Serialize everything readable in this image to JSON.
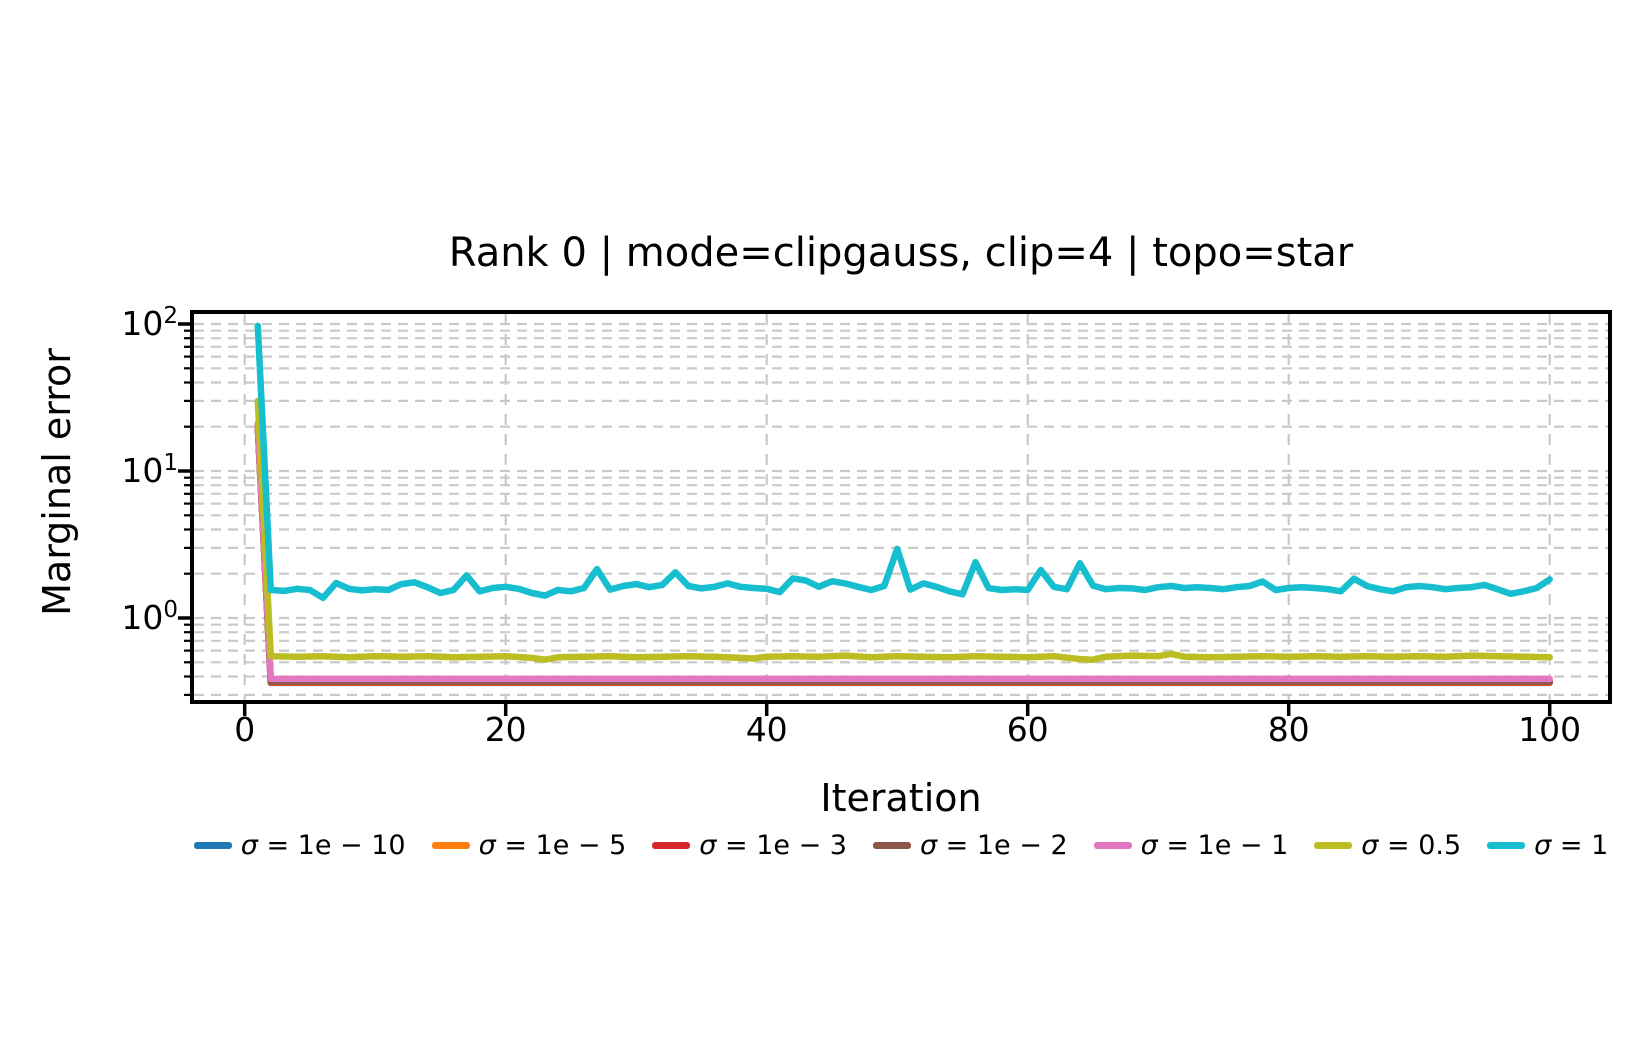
{
  "figure": {
    "title": "Rank 0 | mode=clipgauss, clip=4 | topo=star",
    "xlabel": "Iteration",
    "ylabel": "Marginal error"
  },
  "chart_data": {
    "type": "line",
    "title": "Rank 0 | mode=clipgauss, clip=4 | topo=star",
    "xlabel": "Iteration",
    "ylabel": "Marginal error",
    "x_scale": "linear",
    "y_scale": "log",
    "xlim": [
      -4,
      104.6
    ],
    "ylim": [
      0.268,
      120
    ],
    "x_ticks": [
      0,
      20,
      40,
      60,
      80,
      100
    ],
    "y_ticks": [
      {
        "text": "10^0",
        "base": "10",
        "exponent": "0",
        "value": 1
      },
      {
        "text": "10^1",
        "base": "10",
        "exponent": "1",
        "value": 10
      },
      {
        "text": "10^2",
        "base": "10",
        "exponent": "2",
        "value": 100
      }
    ],
    "grid": {
      "major": true,
      "minor": true,
      "style": "dashed",
      "color": "#c9c9c9"
    },
    "legend_position": "below-xlabel",
    "series": [
      {
        "name": "σ = 1e − 10",
        "sigma": "1e-10",
        "label_symbol": "σ",
        "label_rest": " = 1e − 10",
        "color": "#1f77b4",
        "x": [
          1,
          2,
          100
        ],
        "values": [
          20,
          0.362,
          0.362
        ]
      },
      {
        "name": "σ = 1e − 5",
        "sigma": "1e-5",
        "label_symbol": "σ",
        "label_rest": " = 1e − 5",
        "color": "#ff7f0e",
        "x": [
          1,
          2,
          100
        ],
        "values": [
          20,
          0.363,
          0.363
        ]
      },
      {
        "name": "σ = 1e − 3",
        "sigma": "1e-3",
        "label_symbol": "σ",
        "label_rest": " = 1e − 3",
        "color": "#d62728",
        "x": [
          1,
          2,
          100
        ],
        "values": [
          20,
          0.365,
          0.365
        ]
      },
      {
        "name": "σ = 1e − 2",
        "sigma": "1e-2",
        "label_symbol": "σ",
        "label_rest": " = 1e − 2",
        "color": "#8c564b",
        "x": [
          1,
          2,
          100
        ],
        "values": [
          20,
          0.368,
          0.368
        ]
      },
      {
        "name": "σ = 1e − 1",
        "sigma": "1e-1",
        "label_symbol": "σ",
        "label_rest": " = 1e − 1",
        "color": "#e377c2",
        "x": [
          1,
          2,
          100
        ],
        "values": [
          21,
          0.385,
          0.385
        ]
      },
      {
        "name": "σ = 0.5",
        "sigma": "0.5",
        "label_symbol": "σ",
        "label_rest": " = 0.5",
        "color": "#bcbd22",
        "x": [
          1,
          2,
          4,
          6,
          8,
          10,
          12,
          14,
          16,
          18,
          20,
          22,
          23,
          24,
          26,
          28,
          30,
          32,
          34,
          36,
          38,
          39,
          40,
          42,
          44,
          46,
          48,
          50,
          52,
          54,
          56,
          58,
          60,
          62,
          64,
          65,
          66,
          68,
          70,
          71,
          72,
          74,
          76,
          78,
          80,
          82,
          84,
          86,
          88,
          90,
          92,
          94,
          96,
          98,
          100
        ],
        "values": [
          30,
          0.55,
          0.545,
          0.55,
          0.54,
          0.55,
          0.545,
          0.55,
          0.54,
          0.545,
          0.55,
          0.535,
          0.52,
          0.54,
          0.545,
          0.55,
          0.54,
          0.545,
          0.55,
          0.545,
          0.535,
          0.53,
          0.545,
          0.55,
          0.545,
          0.555,
          0.54,
          0.55,
          0.545,
          0.54,
          0.55,
          0.545,
          0.54,
          0.55,
          0.525,
          0.52,
          0.545,
          0.555,
          0.55,
          0.57,
          0.545,
          0.54,
          0.545,
          0.55,
          0.545,
          0.55,
          0.545,
          0.55,
          0.545,
          0.55,
          0.545,
          0.555,
          0.55,
          0.545,
          0.54
        ]
      },
      {
        "name": "σ = 1",
        "sigma": "1",
        "label_symbol": "σ",
        "label_rest": " = 1",
        "color": "#17becf",
        "x_start": 1,
        "values": [
          97,
          1.55,
          1.53,
          1.58,
          1.55,
          1.37,
          1.73,
          1.58,
          1.54,
          1.57,
          1.55,
          1.7,
          1.75,
          1.62,
          1.48,
          1.55,
          1.95,
          1.52,
          1.6,
          1.63,
          1.58,
          1.48,
          1.42,
          1.55,
          1.52,
          1.6,
          2.15,
          1.56,
          1.65,
          1.7,
          1.62,
          1.68,
          2.05,
          1.65,
          1.59,
          1.63,
          1.72,
          1.63,
          1.6,
          1.58,
          1.5,
          1.86,
          1.8,
          1.63,
          1.78,
          1.72,
          1.63,
          1.55,
          1.65,
          2.95,
          1.56,
          1.72,
          1.63,
          1.52,
          1.45,
          2.4,
          1.6,
          1.55,
          1.57,
          1.55,
          2.12,
          1.63,
          1.57,
          2.36,
          1.66,
          1.57,
          1.6,
          1.59,
          1.55,
          1.62,
          1.65,
          1.6,
          1.62,
          1.6,
          1.57,
          1.62,
          1.65,
          1.77,
          1.55,
          1.6,
          1.62,
          1.6,
          1.57,
          1.52,
          1.85,
          1.65,
          1.57,
          1.52,
          1.62,
          1.65,
          1.62,
          1.57,
          1.6,
          1.62,
          1.68,
          1.57,
          1.46,
          1.52,
          1.6,
          1.83
        ]
      }
    ]
  }
}
